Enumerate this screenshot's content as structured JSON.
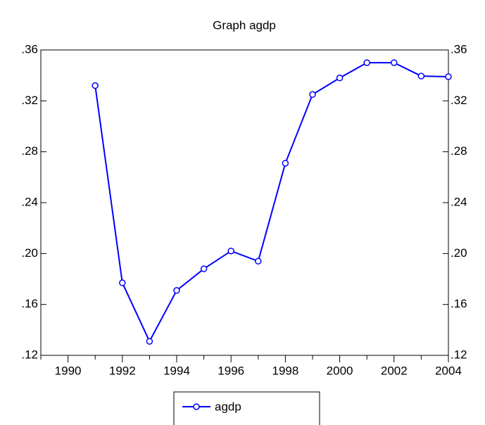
{
  "chart_data": {
    "type": "line",
    "title": "Graph agdp",
    "x": [
      1991,
      1992,
      1993,
      1994,
      1995,
      1996,
      1997,
      1998,
      1999,
      2000,
      2001,
      2002,
      2003,
      2004
    ],
    "series": [
      {
        "name": "agdp",
        "color": "#0000ff",
        "values": [
          0.332,
          0.177,
          0.131,
          0.171,
          0.188,
          0.202,
          0.194,
          0.271,
          0.325,
          0.338,
          0.35,
          0.35,
          0.3395,
          0.339
        ]
      }
    ],
    "xlim": [
      1989,
      2004
    ],
    "xticks": [
      1990,
      1992,
      1994,
      1996,
      1998,
      2000,
      2002,
      2004
    ],
    "xminorticks": [
      1989,
      1991,
      1993,
      1995,
      1997,
      1999,
      2001,
      2003
    ],
    "ylim": [
      0.12,
      0.36
    ],
    "yticks": [
      {
        "value": 0.12,
        "label": ".12"
      },
      {
        "value": 0.16,
        "label": ".16"
      },
      {
        "value": 0.2,
        "label": ".20"
      },
      {
        "value": 0.24,
        "label": ".24"
      },
      {
        "value": 0.28,
        "label": ".28"
      },
      {
        "value": 0.32,
        "label": ".32"
      },
      {
        "value": 0.36,
        "label": ".36"
      }
    ],
    "legend": "bottom"
  }
}
